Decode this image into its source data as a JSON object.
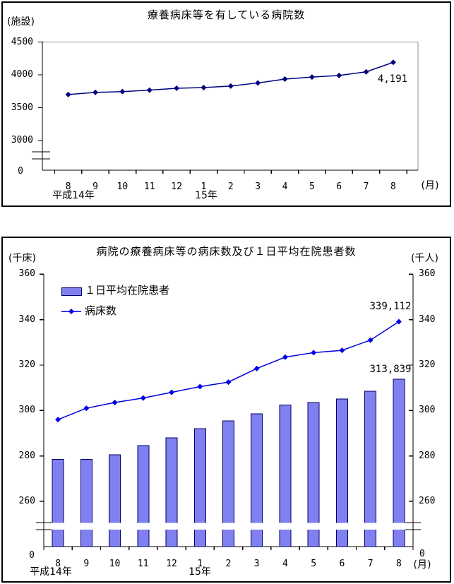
{
  "chart_data": [
    {
      "type": "line",
      "title": "療養病床等を有している病院数",
      "y_axis_unit_label": "(施設)",
      "x_axis_unit_label": "(月)",
      "y_tick_labels": [
        "4500",
        "4000",
        "3500",
        "3000"
      ],
      "y_zero_label": "0",
      "has_y_axis_break": true,
      "ylim_visible": [
        3000,
        4500
      ],
      "grid": "off",
      "x_categories": [
        "8",
        "9",
        "10",
        "11",
        "12",
        "1",
        "2",
        "3",
        "4",
        "5",
        "6",
        "7",
        "8"
      ],
      "era_labels": [
        {
          "text": "平成14年",
          "at_category_index": 0
        },
        {
          "text": "15年",
          "at_category_index": 5
        }
      ],
      "series": [
        {
          "name": "病院数",
          "marker": "diamond",
          "color": "#000080",
          "values": [
            3700,
            3733,
            3744,
            3767,
            3796,
            3806,
            3829,
            3877,
            3935,
            3966,
            3991,
            4046,
            4191
          ]
        }
      ],
      "last_point_label": "4,191"
    },
    {
      "type": "bar+line",
      "title": "病院の療養病床等の病床数及び１日平均在院患者数",
      "left_axis_unit_label": "(千床)",
      "right_axis_unit_label": "(千人)",
      "x_axis_unit_label": "(月)",
      "y_tick_labels": [
        "360",
        "340",
        "320",
        "300",
        "280",
        "260"
      ],
      "y_zero_label": "0",
      "has_y_axis_break": true,
      "ylim_visible": [
        260,
        360
      ],
      "grid": "off",
      "x_categories": [
        "8",
        "9",
        "10",
        "11",
        "12",
        "1",
        "2",
        "3",
        "4",
        "5",
        "6",
        "7",
        "8"
      ],
      "era_labels": [
        {
          "text": "平成14年",
          "at_category_index": 0
        },
        {
          "text": "15年",
          "at_category_index": 5
        }
      ],
      "legend": {
        "position": "top-left-inside",
        "items": [
          {
            "label": "１日平均在院患者",
            "swatch": "bar"
          },
          {
            "label": "病床数",
            "swatch": "line"
          }
        ]
      },
      "bar_series": {
        "name": "１日平均在院患者",
        "axis": "right",
        "unit": "千人",
        "fill_color": "#8080F0",
        "border_color": "#000066",
        "values": [
          278.5,
          278.5,
          280.5,
          284.5,
          288,
          292,
          295.5,
          298.5,
          302.5,
          303.5,
          305,
          308.5,
          313.839
        ],
        "last_point_label": "313,839"
      },
      "line_series": {
        "name": "病床数",
        "axis": "left",
        "unit": "千床",
        "marker": "diamond",
        "color": "#0000E6",
        "values": [
          296,
          301,
          303.5,
          305.5,
          308,
          310.5,
          312.5,
          318.5,
          323.5,
          325.5,
          326.5,
          331,
          339.112
        ],
        "last_point_label": "339,112"
      }
    }
  ]
}
